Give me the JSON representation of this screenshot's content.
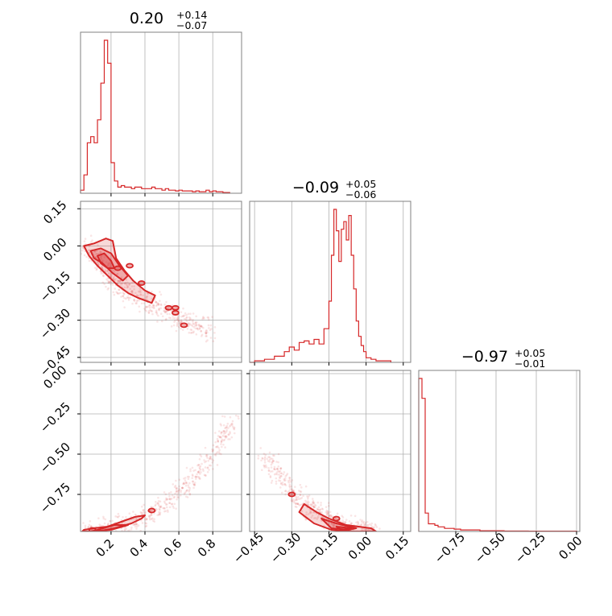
{
  "chart_data": {
    "type": "corner",
    "color": "#d62728",
    "parameters": [
      {
        "median": "0.20",
        "plus": "+0.14",
        "minus": "−0.07"
      },
      {
        "median": "−0.09",
        "plus": "+0.05",
        "minus": "−0.06"
      },
      {
        "median": "−0.97",
        "plus": "+0.05",
        "minus": "−0.01"
      }
    ],
    "ranges": [
      [
        0.02,
        0.97
      ],
      [
        -0.47,
        0.18
      ],
      [
        -0.98,
        0.02
      ]
    ],
    "ticks": [
      {
        "values": [
          0.2,
          0.4,
          0.6,
          0.8
        ],
        "labels": [
          "0.2",
          "0.4",
          "0.6",
          "0.8"
        ]
      },
      {
        "values": [
          -0.45,
          -0.3,
          -0.15,
          0.0,
          0.15
        ],
        "labels": [
          "−0.45",
          "−0.30",
          "−0.15",
          "0.00",
          "0.15"
        ]
      },
      {
        "values": [
          -0.75,
          -0.5,
          -0.25,
          0.0
        ],
        "labels": [
          "−0.75",
          "−0.50",
          "−0.25",
          "0.00"
        ]
      }
    ],
    "histograms": [
      {
        "param": 0,
        "bins": [
          [
            0.02,
            2
          ],
          [
            0.04,
            12
          ],
          [
            0.06,
            33
          ],
          [
            0.08,
            37
          ],
          [
            0.1,
            33
          ],
          [
            0.12,
            48
          ],
          [
            0.14,
            72
          ],
          [
            0.16,
            100
          ],
          [
            0.18,
            85
          ],
          [
            0.2,
            20
          ],
          [
            0.22,
            8
          ],
          [
            0.24,
            4
          ],
          [
            0.26,
            5
          ],
          [
            0.28,
            4
          ],
          [
            0.3,
            4
          ],
          [
            0.32,
            3
          ],
          [
            0.34,
            4
          ],
          [
            0.36,
            4
          ],
          [
            0.38,
            3
          ],
          [
            0.4,
            3
          ],
          [
            0.42,
            3
          ],
          [
            0.44,
            4
          ],
          [
            0.46,
            3
          ],
          [
            0.48,
            3
          ],
          [
            0.5,
            2
          ],
          [
            0.52,
            3
          ],
          [
            0.54,
            2
          ],
          [
            0.56,
            2
          ],
          [
            0.58,
            1.5
          ],
          [
            0.6,
            2
          ],
          [
            0.62,
            1.5
          ],
          [
            0.64,
            1.5
          ],
          [
            0.66,
            1.5
          ],
          [
            0.68,
            1
          ],
          [
            0.7,
            1.5
          ],
          [
            0.72,
            1
          ],
          [
            0.74,
            1
          ],
          [
            0.76,
            2
          ],
          [
            0.78,
            1
          ],
          [
            0.8,
            1.5
          ],
          [
            0.82,
            1
          ],
          [
            0.84,
            1
          ],
          [
            0.86,
            0.5
          ],
          [
            0.88,
            0.5
          ],
          [
            0.9,
            0
          ]
        ]
      },
      {
        "param": 1,
        "bins": [
          [
            -0.47,
            0
          ],
          [
            -0.45,
            1
          ],
          [
            -0.43,
            1
          ],
          [
            -0.41,
            2
          ],
          [
            -0.39,
            2
          ],
          [
            -0.37,
            4
          ],
          [
            -0.35,
            4
          ],
          [
            -0.33,
            7
          ],
          [
            -0.31,
            10
          ],
          [
            -0.29,
            8
          ],
          [
            -0.27,
            13
          ],
          [
            -0.25,
            14
          ],
          [
            -0.23,
            12
          ],
          [
            -0.21,
            15
          ],
          [
            -0.19,
            12
          ],
          [
            -0.17,
            22
          ],
          [
            -0.15,
            40
          ],
          [
            -0.14,
            70
          ],
          [
            -0.13,
            100
          ],
          [
            -0.12,
            86
          ],
          [
            -0.11,
            66
          ],
          [
            -0.1,
            87
          ],
          [
            -0.09,
            92
          ],
          [
            -0.08,
            80
          ],
          [
            -0.07,
            96
          ],
          [
            -0.06,
            70
          ],
          [
            -0.05,
            48
          ],
          [
            -0.04,
            27
          ],
          [
            -0.03,
            17
          ],
          [
            -0.02,
            11
          ],
          [
            -0.01,
            7
          ],
          [
            0.0,
            3
          ],
          [
            0.02,
            2
          ],
          [
            0.04,
            1
          ],
          [
            0.06,
            1
          ],
          [
            0.08,
            1
          ],
          [
            0.1,
            0
          ]
        ]
      },
      {
        "param": 2,
        "bins": [
          [
            -0.98,
            100
          ],
          [
            -0.96,
            87
          ],
          [
            -0.94,
            12
          ],
          [
            -0.92,
            5
          ],
          [
            -0.9,
            5
          ],
          [
            -0.88,
            4
          ],
          [
            -0.86,
            3
          ],
          [
            -0.84,
            3
          ],
          [
            -0.82,
            2
          ],
          [
            -0.8,
            2
          ],
          [
            -0.76,
            1.5
          ],
          [
            -0.72,
            1
          ],
          [
            -0.68,
            1
          ],
          [
            -0.64,
            1
          ],
          [
            -0.6,
            0.5
          ],
          [
            -0.55,
            0.5
          ],
          [
            -0.5,
            0.5
          ],
          [
            -0.45,
            0.3
          ],
          [
            -0.3,
            0.2
          ],
          [
            -0.15,
            0.2
          ],
          [
            0.0,
            0
          ]
        ]
      }
    ],
    "pairs": [
      {
        "x_param": 0,
        "y_param": 1,
        "trend": [
          [
            0.05,
            0.0
          ],
          [
            0.1,
            -0.03
          ],
          [
            0.15,
            -0.08
          ],
          [
            0.2,
            -0.13
          ],
          [
            0.25,
            -0.16
          ],
          [
            0.3,
            -0.19
          ],
          [
            0.4,
            -0.22
          ],
          [
            0.5,
            -0.26
          ],
          [
            0.6,
            -0.29
          ],
          [
            0.7,
            -0.32
          ],
          [
            0.8,
            -0.34
          ]
        ],
        "contours": [
          [
            [
              0.04,
              0.0
            ],
            [
              0.1,
              0.01
            ],
            [
              0.17,
              0.03
            ],
            [
              0.21,
              0.02
            ],
            [
              0.23,
              -0.05
            ],
            [
              0.28,
              -0.1
            ],
            [
              0.33,
              -0.14
            ],
            [
              0.4,
              -0.18
            ],
            [
              0.46,
              -0.2
            ],
            [
              0.44,
              -0.23
            ],
            [
              0.36,
              -0.21
            ],
            [
              0.3,
              -0.19
            ],
            [
              0.24,
              -0.16
            ],
            [
              0.18,
              -0.12
            ],
            [
              0.12,
              -0.08
            ],
            [
              0.07,
              -0.04
            ]
          ],
          [
            [
              0.08,
              -0.02
            ],
            [
              0.14,
              -0.01
            ],
            [
              0.2,
              -0.03
            ],
            [
              0.25,
              -0.08
            ],
            [
              0.3,
              -0.12
            ],
            [
              0.27,
              -0.14
            ],
            [
              0.21,
              -0.11
            ],
            [
              0.15,
              -0.07
            ],
            [
              0.1,
              -0.05
            ]
          ],
          [
            [
              0.12,
              -0.04
            ],
            [
              0.16,
              -0.03
            ],
            [
              0.2,
              -0.06
            ],
            [
              0.22,
              -0.09
            ],
            [
              0.18,
              -0.09
            ],
            [
              0.14,
              -0.07
            ]
          ]
        ],
        "islands": [
          [
            0.54,
            -0.25
          ],
          [
            0.58,
            -0.25
          ],
          [
            0.63,
            -0.32
          ],
          [
            0.58,
            -0.27
          ],
          [
            0.31,
            -0.08
          ],
          [
            0.24,
            -0.09
          ],
          [
            0.38,
            -0.15
          ]
        ]
      },
      {
        "x_param": 0,
        "y_param": 2,
        "trend": [
          [
            0.05,
            -0.98
          ],
          [
            0.15,
            -0.97
          ],
          [
            0.25,
            -0.95
          ],
          [
            0.35,
            -0.91
          ],
          [
            0.45,
            -0.86
          ],
          [
            0.55,
            -0.79
          ],
          [
            0.65,
            -0.69
          ],
          [
            0.75,
            -0.57
          ],
          [
            0.85,
            -0.42
          ],
          [
            0.92,
            -0.28
          ]
        ],
        "contours": [
          [
            [
              0.03,
              -0.98
            ],
            [
              0.12,
              -0.98
            ],
            [
              0.22,
              -0.96
            ],
            [
              0.32,
              -0.93
            ],
            [
              0.38,
              -0.9
            ],
            [
              0.4,
              -0.88
            ],
            [
              0.34,
              -0.89
            ],
            [
              0.26,
              -0.92
            ],
            [
              0.18,
              -0.95
            ],
            [
              0.1,
              -0.96
            ],
            [
              0.04,
              -0.97
            ]
          ],
          [
            [
              0.08,
              -0.98
            ],
            [
              0.2,
              -0.97
            ],
            [
              0.3,
              -0.94
            ],
            [
              0.22,
              -0.94
            ],
            [
              0.12,
              -0.97
            ]
          ]
        ],
        "islands": [
          [
            0.44,
            -0.85
          ],
          [
            0.09,
            -0.97
          ]
        ]
      },
      {
        "x_param": 1,
        "y_param": 2,
        "trend": [
          [
            -0.42,
            -0.5
          ],
          [
            -0.36,
            -0.62
          ],
          [
            -0.3,
            -0.73
          ],
          [
            -0.25,
            -0.8
          ],
          [
            -0.2,
            -0.86
          ],
          [
            -0.15,
            -0.91
          ],
          [
            -0.1,
            -0.94
          ],
          [
            -0.05,
            -0.96
          ],
          [
            0.0,
            -0.97
          ],
          [
            0.05,
            -0.98
          ]
        ],
        "contours": [
          [
            [
              -0.25,
              -0.81
            ],
            [
              -0.2,
              -0.86
            ],
            [
              -0.15,
              -0.9
            ],
            [
              -0.08,
              -0.94
            ],
            [
              0.02,
              -0.96
            ],
            [
              0.04,
              -0.98
            ],
            [
              -0.06,
              -0.98
            ],
            [
              -0.14,
              -0.97
            ],
            [
              -0.21,
              -0.93
            ],
            [
              -0.27,
              -0.86
            ]
          ],
          [
            [
              -0.18,
              -0.9
            ],
            [
              -0.12,
              -0.93
            ],
            [
              -0.04,
              -0.96
            ],
            [
              -0.07,
              -0.97
            ],
            [
              -0.14,
              -0.96
            ]
          ],
          [
            [
              -0.12,
              -0.95
            ],
            [
              -0.06,
              -0.96
            ],
            [
              -0.1,
              -0.97
            ]
          ]
        ],
        "islands": [
          [
            -0.3,
            -0.75
          ],
          [
            -0.12,
            -0.9
          ]
        ]
      }
    ],
    "grid": true
  }
}
